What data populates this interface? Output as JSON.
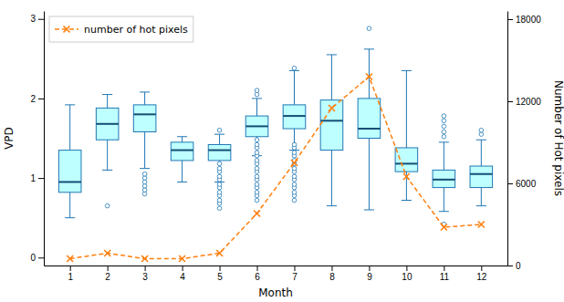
{
  "chart_data": {
    "type": "box",
    "xlabel": "Month",
    "ylabel": "VPD",
    "y2label": "Number of Hot pixels",
    "x": [
      1,
      2,
      3,
      4,
      5,
      6,
      7,
      8,
      9,
      10,
      11,
      12
    ],
    "xlim": [
      0.3,
      12.7
    ],
    "xticks": [
      1,
      2,
      3,
      4,
      5,
      6,
      7,
      8,
      9,
      10,
      11,
      12
    ],
    "ylim": [
      -0.1,
      3.1
    ],
    "yticks": [
      0,
      1,
      2,
      3
    ],
    "y2lim": [
      0,
      18600
    ],
    "y2ticks": [
      0,
      6000,
      12000,
      18000
    ],
    "grid": false,
    "legend": "upper left",
    "boxes": [
      {
        "q1": 0.82,
        "median": 0.95,
        "q3": 1.35,
        "whislo": 0.5,
        "whishi": 1.92,
        "fliers_low": [],
        "fliers_high": []
      },
      {
        "q1": 1.48,
        "median": 1.68,
        "q3": 1.88,
        "whislo": 1.1,
        "whishi": 2.05,
        "fliers_low": [
          0.65
        ],
        "fliers_high": []
      },
      {
        "q1": 1.58,
        "median": 1.8,
        "q3": 1.92,
        "whislo": 1.12,
        "whishi": 2.08,
        "fliers_low": [
          0.8,
          0.85,
          0.9,
          0.95,
          1.0,
          1.05
        ],
        "fliers_high": []
      },
      {
        "q1": 1.22,
        "median": 1.35,
        "q3": 1.45,
        "whislo": 0.95,
        "whishi": 1.52,
        "fliers_low": [],
        "fliers_high": []
      },
      {
        "q1": 1.22,
        "median": 1.35,
        "q3": 1.42,
        "whislo": 0.95,
        "whishi": 1.55,
        "fliers_low": [
          0.62,
          0.68,
          0.72,
          0.78,
          0.82,
          0.88,
          0.92,
          0.98,
          1.02,
          1.08,
          1.12,
          1.18
        ],
        "fliers_high": [
          1.6
        ]
      },
      {
        "q1": 1.52,
        "median": 1.65,
        "q3": 1.78,
        "whislo": 1.28,
        "whishi": 2.0,
        "fliers_low": [
          0.72,
          0.78,
          0.82,
          0.88,
          0.92,
          0.98,
          1.02,
          1.08,
          1.12,
          1.18,
          1.22,
          1.28,
          1.32,
          1.38,
          1.42,
          1.48
        ],
        "fliers_high": [
          2.05,
          2.1
        ]
      },
      {
        "q1": 1.62,
        "median": 1.78,
        "q3": 1.92,
        "whislo": 1.35,
        "whishi": 2.35,
        "fliers_low": [
          0.72,
          0.78,
          0.82,
          0.88,
          0.92,
          0.98,
          1.02,
          1.08,
          1.12,
          1.18,
          1.22,
          1.28,
          1.32,
          1.38,
          1.42
        ],
        "fliers_high": [
          2.38
        ]
      },
      {
        "q1": 1.35,
        "median": 1.72,
        "q3": 1.98,
        "whislo": 0.65,
        "whishi": 2.55,
        "fliers_low": [],
        "fliers_high": []
      },
      {
        "q1": 1.5,
        "median": 1.62,
        "q3": 2.0,
        "whislo": 0.6,
        "whishi": 2.62,
        "fliers_low": [],
        "fliers_high": [
          2.88
        ]
      },
      {
        "q1": 1.08,
        "median": 1.18,
        "q3": 1.38,
        "whislo": 0.72,
        "whishi": 2.35,
        "fliers_low": [],
        "fliers_high": []
      },
      {
        "q1": 0.88,
        "median": 0.98,
        "q3": 1.1,
        "whislo": 0.58,
        "whishi": 1.45,
        "fliers_low": [
          0.42
        ],
        "fliers_high": [
          1.52,
          1.58,
          1.65,
          1.72,
          1.78
        ]
      },
      {
        "q1": 0.88,
        "median": 1.05,
        "q3": 1.15,
        "whislo": 0.65,
        "whishi": 1.48,
        "fliers_low": [],
        "fliers_high": [
          1.55,
          1.6
        ]
      }
    ],
    "series": [
      {
        "name": "number of hot pixels",
        "type": "line",
        "axis": "y2",
        "marker": "x",
        "line_style": "dashed",
        "values": [
          500,
          900,
          500,
          500,
          900,
          3800,
          7500,
          11500,
          13800,
          6500,
          2800,
          3000
        ]
      }
    ]
  }
}
